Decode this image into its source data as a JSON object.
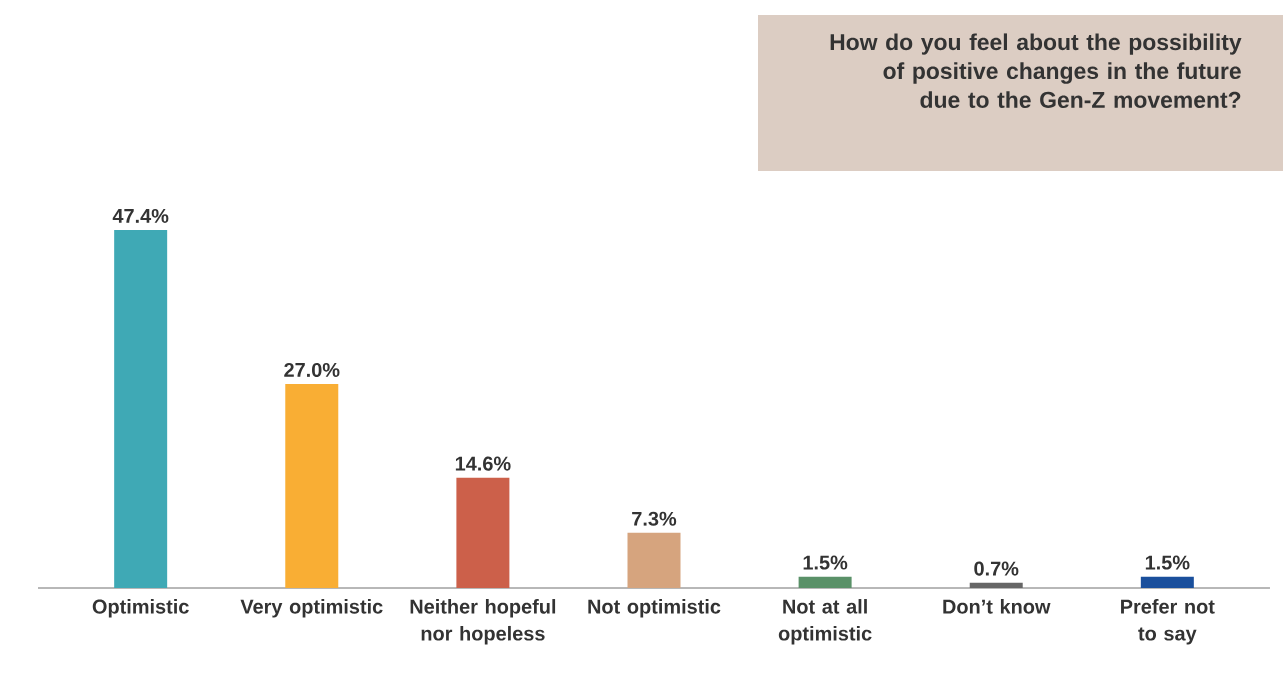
{
  "chart_data": {
    "type": "bar",
    "title": "How do you feel about the possibility of positive changes in the future due to the Gen-Z movement?",
    "categories": [
      "Optimistic",
      "Very optimistic",
      "Neither hopeful nor hopeless",
      "Not optimistic",
      "Not at all optimistic",
      "Don’t know",
      "Prefer not to say"
    ],
    "values": [
      47.4,
      27.0,
      14.6,
      7.3,
      1.5,
      0.7,
      1.5
    ],
    "value_labels": [
      "47.4%",
      "27.0%",
      "14.6%",
      "7.3%",
      "1.5%",
      "0.7%",
      "1.5%"
    ],
    "colors": [
      "#3fa9b5",
      "#f9ae34",
      "#cc604a",
      "#d6a47e",
      "#5a9168",
      "#666666",
      "#1a4f9c"
    ]
  }
}
